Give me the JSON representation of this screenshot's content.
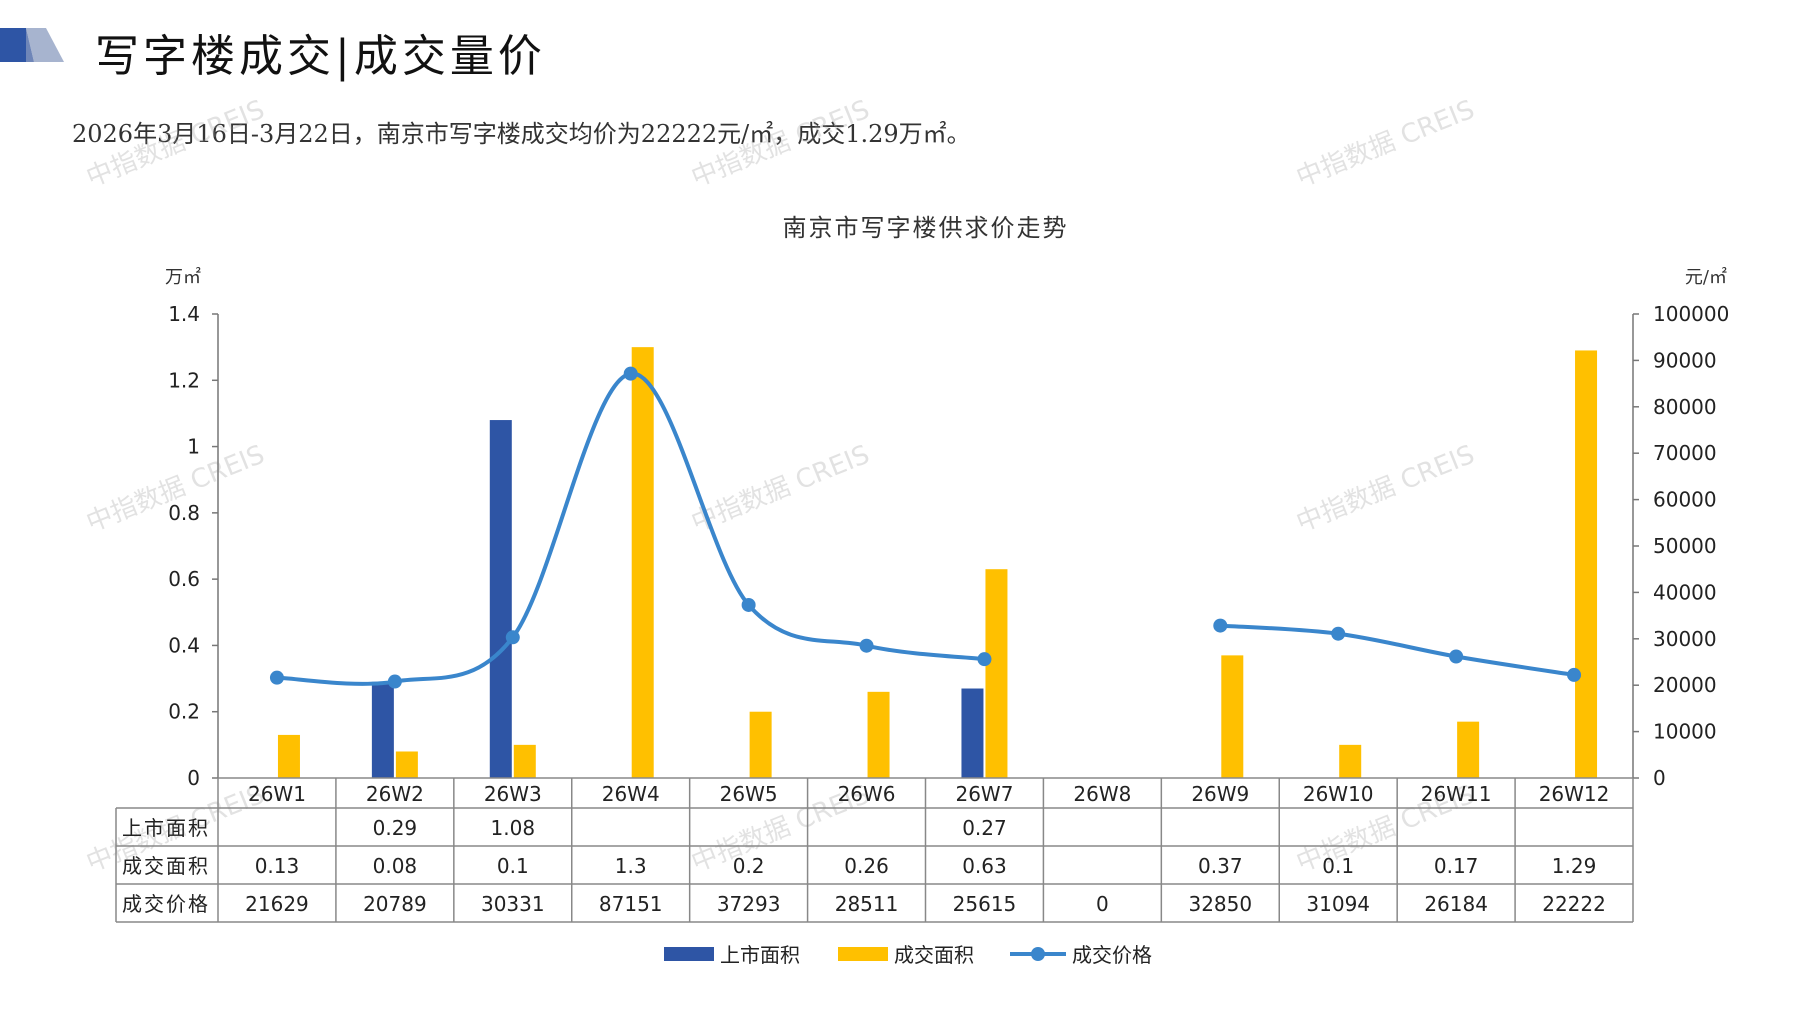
{
  "header": {
    "title": "写字楼成交|成交量价",
    "summary": "2026年3月16日-3月22日，南京市写字楼成交均价为22222元/㎡，成交1.29万㎡。"
  },
  "watermark": "中指数据 CREIS",
  "colors": {
    "listed": "#2E55A5",
    "sold": "#FFC000",
    "price": "#3A86CC",
    "grid": "#999999"
  },
  "chart_data": {
    "type": "bar",
    "title": "南京市写字楼供求价走势",
    "y_left_unit": "万㎡",
    "y_right_unit": "元/㎡",
    "ylim_left": [
      0,
      1.4
    ],
    "ylim_right": [
      0,
      100000
    ],
    "yticks_left": [
      "0",
      "0.2",
      "0.4",
      "0.6",
      "0.8",
      "1",
      "1.2",
      "1.4"
    ],
    "yticks_right": [
      "0",
      "10000",
      "20000",
      "30000",
      "40000",
      "50000",
      "60000",
      "70000",
      "80000",
      "90000",
      "100000"
    ],
    "categories": [
      "26W1",
      "26W2",
      "26W3",
      "26W4",
      "26W5",
      "26W6",
      "26W7",
      "26W8",
      "26W9",
      "26W10",
      "26W11",
      "26W12"
    ],
    "series": [
      {
        "name": "上市面积",
        "type": "bar",
        "axis": "left",
        "values": [
          null,
          0.29,
          1.08,
          null,
          null,
          null,
          0.27,
          null,
          null,
          null,
          null,
          null
        ],
        "labels": [
          "",
          "0.29",
          "1.08",
          "",
          "",
          "",
          "0.27",
          "",
          "",
          "",
          "",
          ""
        ]
      },
      {
        "name": "成交面积",
        "type": "bar",
        "axis": "left",
        "values": [
          0.13,
          0.08,
          0.1,
          1.3,
          0.2,
          0.26,
          0.63,
          null,
          0.37,
          0.1,
          0.17,
          1.29
        ],
        "labels": [
          "0.13",
          "0.08",
          "0.1",
          "1.3",
          "0.2",
          "0.26",
          "0.63",
          "",
          "0.37",
          "0.1",
          "0.17",
          "1.29"
        ]
      },
      {
        "name": "成交价格",
        "type": "line",
        "axis": "right",
        "values": [
          21629,
          20789,
          30331,
          87151,
          37293,
          28511,
          25615,
          0,
          32850,
          31094,
          26184,
          22222
        ],
        "labels": [
          "21629",
          "20789",
          "30331",
          "87151",
          "37293",
          "28511",
          "25615",
          "0",
          "32850",
          "31094",
          "26184",
          "22222"
        ]
      }
    ],
    "legend_position": "bottom-center"
  }
}
